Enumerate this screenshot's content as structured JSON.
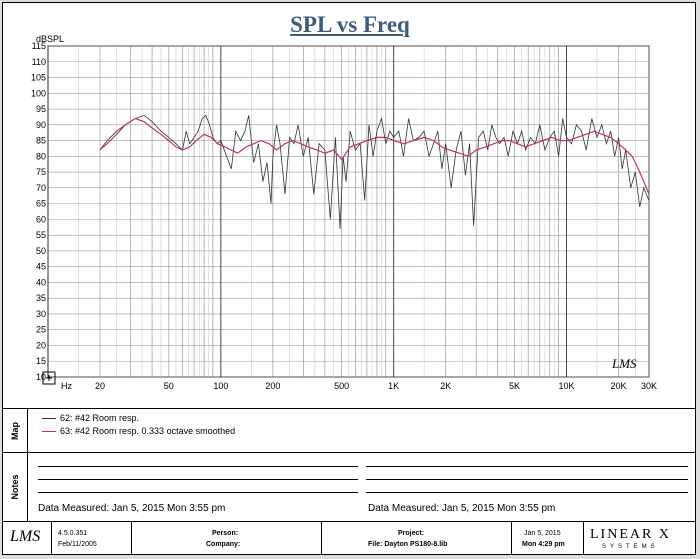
{
  "chart_data": {
    "type": "line",
    "title": "SPL vs Freq",
    "ylabel": "dBSPL",
    "xlabel": "Hz",
    "x_scale": "log",
    "xlim": [
      10,
      30000
    ],
    "ylim": [
      10,
      115
    ],
    "y_ticks": [
      115,
      110,
      105,
      100,
      95,
      90,
      85,
      80,
      75,
      70,
      65,
      60,
      55,
      50,
      45,
      40,
      35,
      30,
      25,
      20,
      15,
      10
    ],
    "x_tick_labels": [
      {
        "v": 20,
        "t": "20"
      },
      {
        "v": 50,
        "t": "50"
      },
      {
        "v": 100,
        "t": "100"
      },
      {
        "v": 200,
        "t": "200"
      },
      {
        "v": 500,
        "t": "500"
      },
      {
        "v": 1000,
        "t": "1K"
      },
      {
        "v": 2000,
        "t": "2K"
      },
      {
        "v": 5000,
        "t": "5K"
      },
      {
        "v": 10000,
        "t": "10K"
      },
      {
        "v": 20000,
        "t": "20K"
      },
      {
        "v": 30000,
        "t": "30K"
      }
    ],
    "grid": true,
    "series": [
      {
        "name": "62: #42 Room resp.",
        "color": "#333333",
        "x": [
          20,
          22,
          25,
          28,
          32,
          36,
          40,
          45,
          50,
          55,
          60,
          63,
          66,
          70,
          74,
          78,
          82,
          86,
          90,
          95,
          100,
          108,
          115,
          122,
          130,
          138,
          145,
          155,
          165,
          175,
          185,
          195,
          200,
          210,
          220,
          235,
          250,
          265,
          280,
          300,
          320,
          345,
          370,
          400,
          430,
          460,
          490,
          510,
          530,
          560,
          600,
          640,
          680,
          720,
          760,
          800,
          850,
          900,
          950,
          1000,
          1070,
          1140,
          1220,
          1300,
          1400,
          1500,
          1600,
          1700,
          1800,
          1900,
          2000,
          2150,
          2300,
          2450,
          2600,
          2750,
          2900,
          3100,
          3300,
          3500,
          3700,
          3900,
          4100,
          4350,
          4600,
          4900,
          5200,
          5500,
          5800,
          6200,
          6600,
          7000,
          7500,
          8000,
          8500,
          9000,
          9500,
          10000,
          10700,
          11400,
          12200,
          13000,
          14000,
          15000,
          16000,
          17000,
          18000,
          19000,
          20000,
          21000,
          22000,
          23500,
          25000,
          26500,
          28000,
          30000
        ],
        "y": [
          82,
          84,
          87,
          90,
          92,
          93,
          91,
          88,
          86,
          84,
          82,
          88,
          84,
          86,
          88,
          92,
          93,
          90,
          86,
          84,
          85,
          80,
          76,
          88,
          85,
          88,
          93,
          78,
          84,
          72,
          78,
          65,
          80,
          90,
          84,
          68,
          86,
          84,
          90,
          80,
          86,
          68,
          84,
          82,
          60,
          86,
          57,
          80,
          72,
          88,
          82,
          84,
          66,
          90,
          80,
          88,
          92,
          84,
          88,
          86,
          88,
          80,
          92,
          85,
          86,
          88,
          80,
          84,
          88,
          76,
          84,
          70,
          82,
          88,
          74,
          84,
          58,
          86,
          88,
          82,
          90,
          86,
          84,
          86,
          80,
          88,
          84,
          88,
          82,
          86,
          84,
          90,
          82,
          86,
          88,
          80,
          92,
          86,
          84,
          90,
          88,
          82,
          92,
          86,
          90,
          84,
          88,
          80,
          86,
          76,
          82,
          70,
          75,
          64,
          70,
          66
        ]
      },
      {
        "name": "63: #42 Room resp.  0.333 octave smoothed",
        "color": "#c0306a",
        "x": [
          20,
          22,
          25,
          28,
          32,
          36,
          40,
          45,
          50,
          55,
          60,
          66,
          72,
          80,
          88,
          96,
          105,
          115,
          125,
          140,
          155,
          170,
          190,
          210,
          235,
          260,
          290,
          320,
          360,
          400,
          450,
          500,
          560,
          630,
          700,
          800,
          900,
          1000,
          1150,
          1300,
          1500,
          1700,
          1900,
          2100,
          2400,
          2700,
          3000,
          3400,
          3800,
          4200,
          4700,
          5200,
          5800,
          6500,
          7300,
          8200,
          9200,
          10300,
          11500,
          13000,
          14500,
          16000,
          18000,
          20000,
          22000,
          24000,
          26000,
          28000,
          30000
        ],
        "y": [
          82,
          85,
          88,
          90,
          92,
          91,
          89,
          87,
          85,
          83,
          82,
          83,
          85,
          87,
          86,
          84,
          83,
          82,
          81,
          83,
          84,
          85,
          84,
          82,
          84,
          85,
          84,
          83,
          82,
          81,
          82,
          79,
          83,
          84,
          85,
          86,
          86,
          85,
          84,
          85,
          86,
          85,
          83,
          82,
          81,
          80,
          82,
          83,
          84,
          85,
          85,
          84,
          83,
          84,
          85,
          86,
          85,
          85,
          86,
          87,
          88,
          87,
          86,
          84,
          82,
          80,
          76,
          72,
          68
        ]
      }
    ]
  },
  "logo_text": "LMS",
  "legend_section_label": "Map",
  "notes_section_label": "Notes",
  "measured_left": "Data Measured:  Jan  5, 2015   Mon   3:55 pm",
  "measured_right": "Data Measured:  Jan  5, 2015   Mon   3:55 pm",
  "footer": {
    "version": "4.5.0.351",
    "version_date": "Feb/11/2005",
    "person_label": "Person:",
    "company_label": "Company:",
    "project_label": "Project:",
    "file": "File: Dayton PS180-8.lib",
    "date": "Jan  5, 2015",
    "time": "Mon   4:29 pm",
    "brand": "LINEAR X",
    "brand_sub": "SYSTEMS"
  }
}
